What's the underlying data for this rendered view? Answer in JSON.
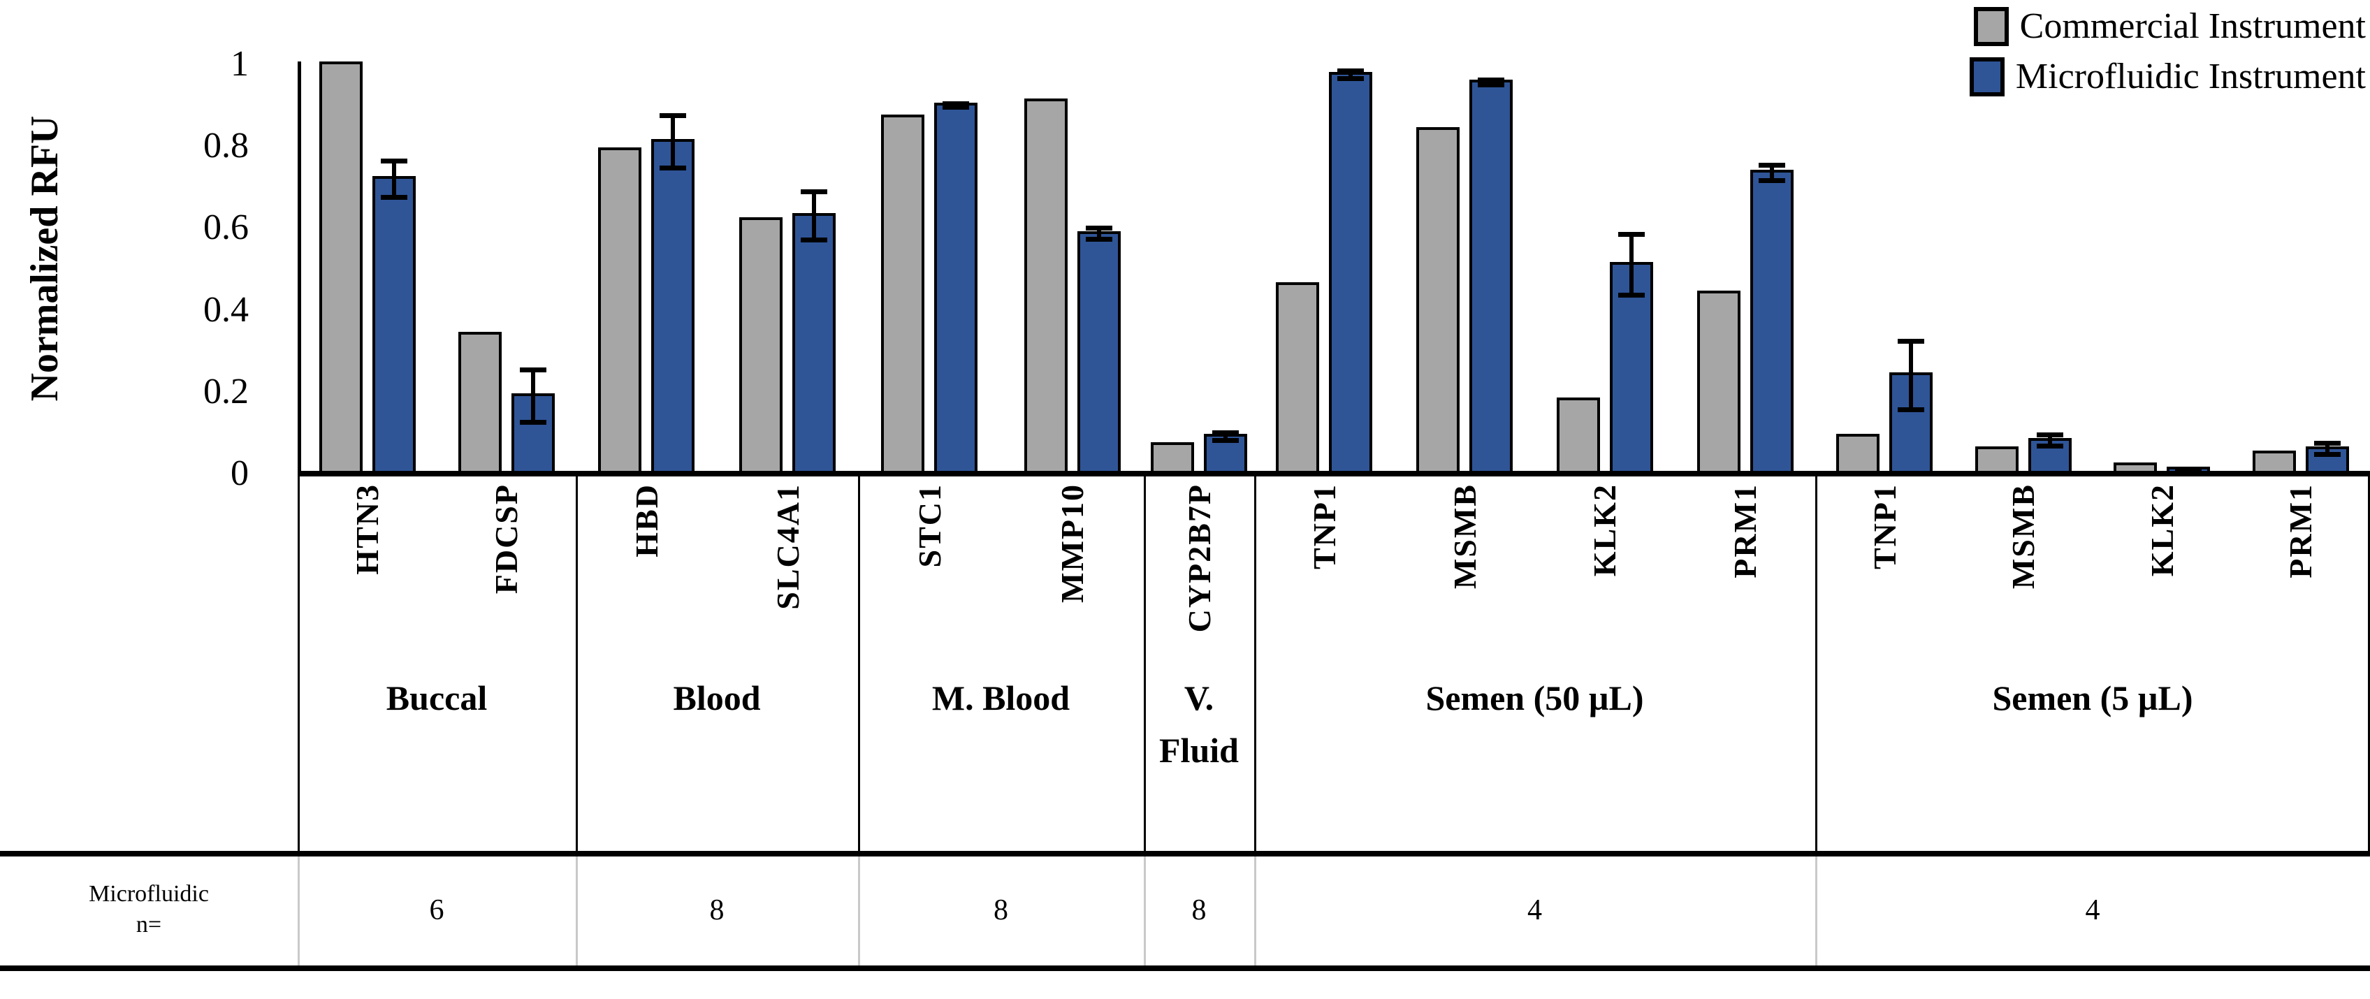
{
  "legend": {
    "items": [
      {
        "label": "Commercial Instrument",
        "color": "#A6A6A6"
      },
      {
        "label": "Microfluidic Instrument",
        "color": "#2F5597"
      }
    ]
  },
  "y_axis": {
    "title": "Normalized RFU",
    "ticks": [
      {
        "label": "1",
        "value": 1.0
      },
      {
        "label": "0.8",
        "value": 0.8
      },
      {
        "label": "0.6",
        "value": 0.6
      },
      {
        "label": "0.4",
        "value": 0.4
      },
      {
        "label": "0.2",
        "value": 0.2
      },
      {
        "label": "0",
        "value": 0.0
      }
    ]
  },
  "n_row": {
    "header_line1": "Microfluidic",
    "header_line2": "n=",
    "values": [
      "6",
      "8",
      "8",
      "8",
      "4",
      "4"
    ]
  },
  "chart_data": {
    "type": "bar",
    "title": "",
    "xlabel": "",
    "ylabel": "Normalized RFU",
    "ylim": [
      0,
      1
    ],
    "grid": false,
    "legend_position": "top-right",
    "series_names": [
      "Commercial Instrument",
      "Microfluidic Instrument"
    ],
    "colors": {
      "commercial": "#A6A6A6",
      "microfluidic": "#2F5597",
      "bar_border": "#000000",
      "error_bar": "#000000"
    },
    "groups": [
      {
        "label": "Buccal",
        "n": 6,
        "markers": [
          {
            "name": "HTN3",
            "commercial": 1.0,
            "microfluidic": 0.72,
            "micro_err": 0.05
          },
          {
            "name": "FDCSP",
            "commercial": 0.34,
            "microfluidic": 0.19,
            "micro_err": 0.07
          }
        ]
      },
      {
        "label": "Blood",
        "n": 8,
        "markers": [
          {
            "name": "HBD",
            "commercial": 0.79,
            "microfluidic": 0.81,
            "micro_err": 0.07
          },
          {
            "name": "SLC4A1",
            "commercial": 0.62,
            "microfluidic": 0.63,
            "micro_err": 0.065
          }
        ]
      },
      {
        "label": "M. Blood",
        "n": 8,
        "markers": [
          {
            "name": "STC1",
            "commercial": 0.87,
            "microfluidic": 0.9,
            "micro_err": 0.01
          },
          {
            "name": "MMP10",
            "commercial": 0.91,
            "microfluidic": 0.585,
            "micro_err": 0.02
          }
        ]
      },
      {
        "label": "V. Fluid",
        "n": 8,
        "markers": [
          {
            "name": "CYP2B7P",
            "commercial": 0.07,
            "microfluidic": 0.09,
            "micro_err": 0.015
          }
        ]
      },
      {
        "label": "Semen (50 µL)",
        "n": 4,
        "markers": [
          {
            "name": "TNP1",
            "commercial": 0.46,
            "microfluidic": 0.975,
            "micro_err": 0.015
          },
          {
            "name": "MSMB",
            "commercial": 0.84,
            "microfluidic": 0.955,
            "micro_err": 0.012
          },
          {
            "name": "KLK2",
            "commercial": 0.18,
            "microfluidic": 0.51,
            "micro_err": 0.08
          },
          {
            "name": "PRM1",
            "commercial": 0.44,
            "microfluidic": 0.735,
            "micro_err": 0.025
          }
        ]
      },
      {
        "label": "Semen (5 µL)",
        "n": 4,
        "markers": [
          {
            "name": "TNP1",
            "commercial": 0.09,
            "microfluidic": 0.24,
            "micro_err": 0.09
          },
          {
            "name": "MSMB",
            "commercial": 0.06,
            "microfluidic": 0.08,
            "micro_err": 0.02
          },
          {
            "name": "KLK2",
            "commercial": 0.02,
            "microfluidic": 0.01,
            "micro_err": 0.005
          },
          {
            "name": "PRM1",
            "commercial": 0.05,
            "microfluidic": 0.06,
            "micro_err": 0.02
          }
        ]
      }
    ]
  }
}
